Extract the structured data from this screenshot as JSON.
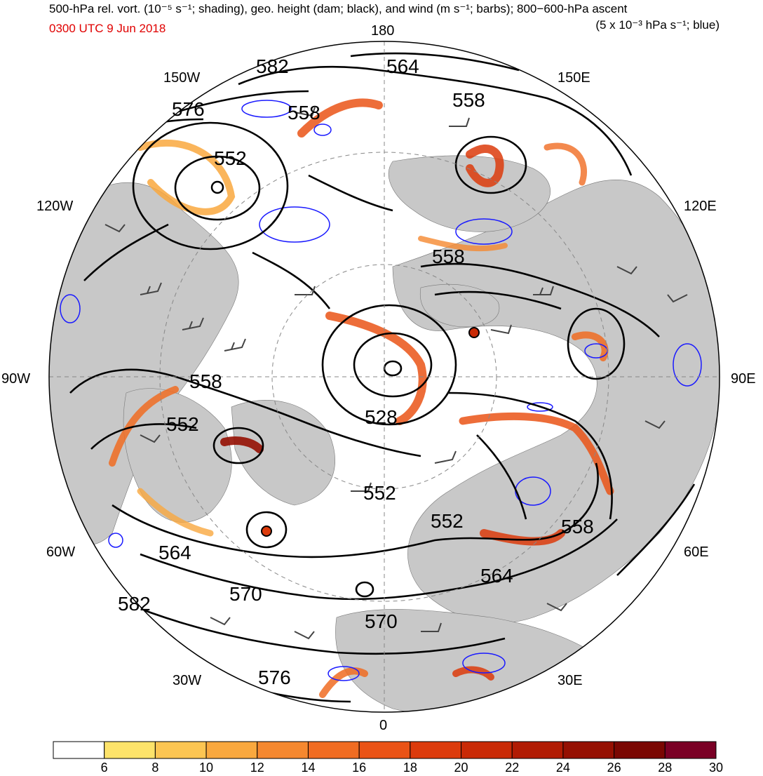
{
  "header": {
    "title_left": "500-hPa rel. vort. (10⁻⁵ s⁻¹; shading), geo. height (dam; black), and wind (m s⁻¹; barbs); 800−600-hPa ascent",
    "title_right": "(5 x 10⁻³ hPa s⁻¹; blue)",
    "date": "0300 UTC 9 Jun 2018",
    "date_color": "#e00000"
  },
  "map": {
    "projection": "north-polar-stereographic",
    "longitude_labels": {
      "top": "180",
      "bottom": "0",
      "left": "90W",
      "right": "90E",
      "upper_left": "150W",
      "left_upper": "120W",
      "left_lower": "60W",
      "lower_left": "30W",
      "upper_right": "150E",
      "right_upper": "120E",
      "right_lower": "60E",
      "lower_right": "30E"
    },
    "height_contour_labels_dam": [
      "582",
      "564",
      "576",
      "558",
      "552",
      "558",
      "558",
      "558",
      "552",
      "528",
      "552",
      "552",
      "564",
      "558",
      "570",
      "564",
      "582",
      "570",
      "576"
    ],
    "colors": {
      "land": "#c8c8c8",
      "ocean": "#ffffff",
      "height_contour": "#000000",
      "ascent_contour": "#1a1aff",
      "barb": "#444444"
    }
  },
  "colorbar": {
    "ticks": [
      "6",
      "8",
      "10",
      "12",
      "14",
      "16",
      "18",
      "20",
      "22",
      "24",
      "26",
      "28",
      "30"
    ],
    "colors": [
      "#ffffff",
      "#fde36a",
      "#fcc552",
      "#f9a83e",
      "#f5882f",
      "#f06c22",
      "#ea5316",
      "#dc3b0c",
      "#c92a06",
      "#b11b03",
      "#951002",
      "#7a0702",
      "#7a0025"
    ]
  }
}
